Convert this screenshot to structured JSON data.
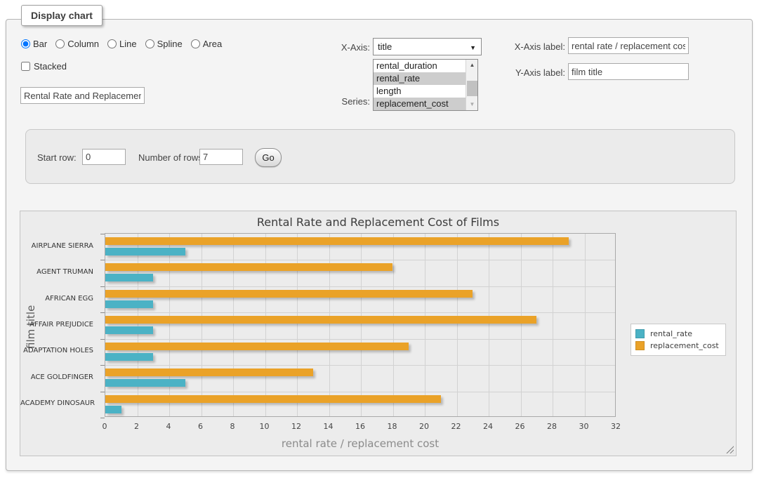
{
  "panel": {
    "title": "Display chart"
  },
  "controls": {
    "chart_types": {
      "options": [
        "Bar",
        "Column",
        "Line",
        "Spline",
        "Area"
      ],
      "selected": "Bar"
    },
    "stacked": {
      "label": "Stacked",
      "checked": false
    },
    "chart_title_input": {
      "value": "Rental Rate and Replacement Cost of Films"
    },
    "x_axis": {
      "label": "X-Axis:",
      "selected": "title"
    },
    "series": {
      "label": "Series:",
      "visible_options": [
        "rental_duration",
        "rental_rate",
        "length",
        "replacement_cost"
      ],
      "selected": [
        "rental_rate",
        "replacement_cost"
      ]
    },
    "x_axis_label": {
      "label": "X-Axis label:",
      "value": "rental rate / replacement cost"
    },
    "y_axis_label": {
      "label": "Y-Axis label:",
      "value": "film title"
    }
  },
  "row_panel": {
    "start_row": {
      "label": "Start row:",
      "value": "0"
    },
    "number_of_rows": {
      "label": "Number of rows:",
      "value": "7"
    },
    "go_button": "Go"
  },
  "chart_data": {
    "type": "bar",
    "orientation": "horizontal",
    "title": "Rental Rate and Replacement Cost of Films",
    "xlabel": "rental rate / replacement cost",
    "ylabel": "film title",
    "xlim": [
      0,
      32
    ],
    "x_ticks": [
      0,
      2,
      4,
      6,
      8,
      10,
      12,
      14,
      16,
      18,
      20,
      22,
      24,
      26,
      28,
      30,
      32
    ],
    "grid": true,
    "legend_position": "right-middle",
    "categories_top_to_bottom": [
      "AIRPLANE SIERRA",
      "AGENT TRUMAN",
      "AFRICAN EGG",
      "AFFAIR PREJUDICE",
      "ADAPTATION HOLES",
      "ACE GOLDFINGER",
      "ACADEMY DINOSAUR"
    ],
    "series": [
      {
        "name": "rental_rate",
        "color": "#4bb2c5",
        "values": [
          4.99,
          2.99,
          2.99,
          2.99,
          2.99,
          4.99,
          0.99
        ]
      },
      {
        "name": "replacement_cost",
        "color": "#eaa228",
        "values": [
          28.99,
          17.99,
          22.99,
          26.99,
          18.99,
          12.99,
          20.99
        ]
      }
    ],
    "bar_order_in_group_top_to_bottom": [
      "replacement_cost",
      "rental_rate"
    ]
  }
}
